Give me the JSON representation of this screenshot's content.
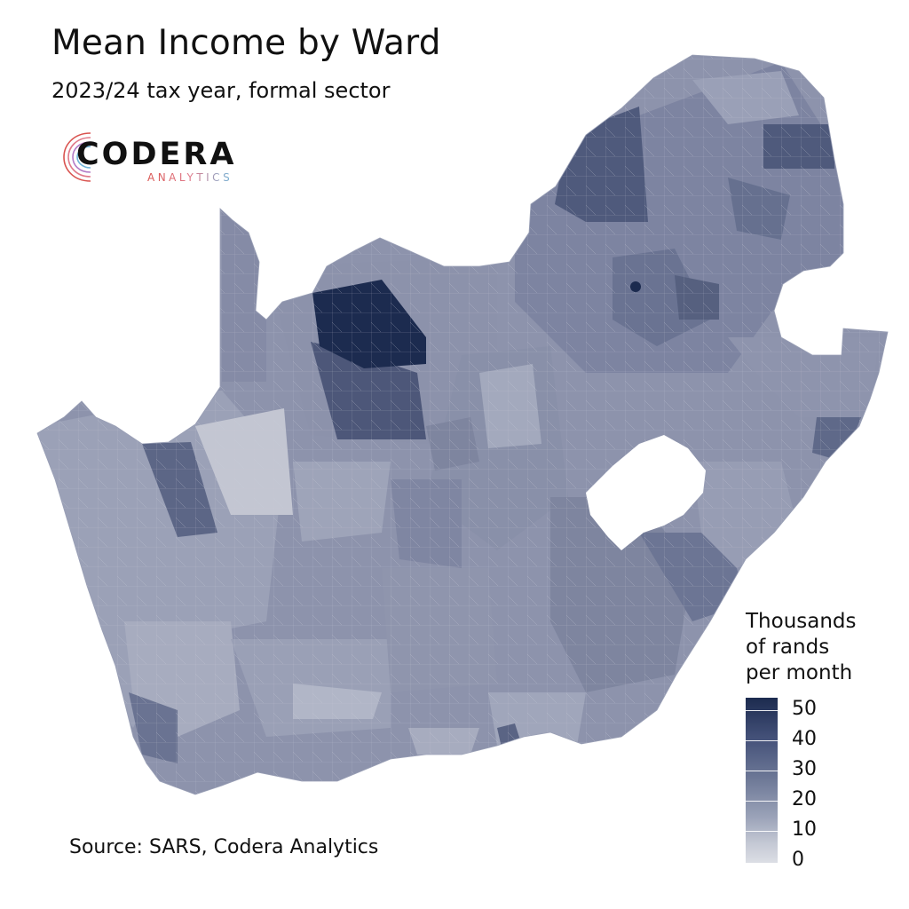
{
  "header": {
    "title": "Mean Income by Ward",
    "subtitle": "2023/24 tax year, formal sector"
  },
  "logo": {
    "name": "CODERA",
    "tagline": "ANALYTICS"
  },
  "legend": {
    "title_lines": [
      "Thousands",
      "of rands",
      "per month"
    ],
    "ticks": [
      "50",
      "40",
      "30",
      "20",
      "10",
      "0"
    ],
    "range": [
      0,
      50
    ],
    "colors": {
      "high": "#1c2b4f",
      "low": "#dcdee5"
    }
  },
  "footer": {
    "source": "Source: SARS, Codera Analytics"
  },
  "map_style": {
    "base_fill": "#8a90aa",
    "border_color": "#c9ccd8",
    "darkest": "#1c2b4f"
  }
}
